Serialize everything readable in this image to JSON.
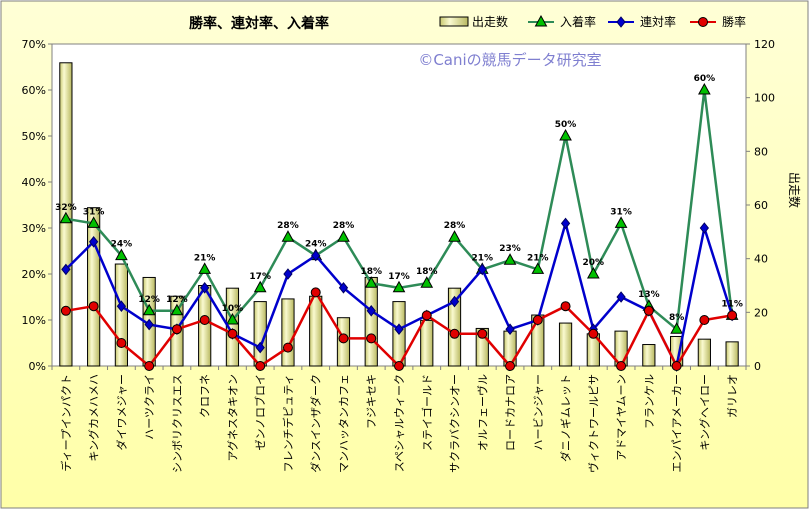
{
  "chart_data": {
    "type": "bar",
    "title": "勝率、連対率、入着率",
    "watermark": "©Caniの競馬データ研究室",
    "y2label": "出走数",
    "ylim": [
      0,
      70
    ],
    "y2lim": [
      0,
      120
    ],
    "y_ticks": [
      "0%",
      "10%",
      "20%",
      "30%",
      "40%",
      "50%",
      "60%",
      "70%"
    ],
    "y2_ticks": [
      "0",
      "20",
      "40",
      "60",
      "80",
      "100",
      "120"
    ],
    "categories": [
      "ディープインパクト",
      "キングカメハメハ",
      "ダイワメジャー",
      "ハーツクライ",
      "シンボリクリスエス",
      "クロフネ",
      "アグネスタキオン",
      "ゼンノロブロイ",
      "フレンチデピュティ",
      "ダンスインザダーク",
      "マンハッタンカフェ",
      "フジキセキ",
      "スペシャルウィーク",
      "ステイゴールド",
      "サクラバクシンオー",
      "オルフェーヴル",
      "ロードカナロア",
      "ハービンジャー",
      "ダニノギムレット",
      "ヴィクトワールピサ",
      "アドマイヤムーン",
      "フランケル",
      "エンパイアメーカー",
      "キングヘイロー",
      "ガリレオ"
    ],
    "series": [
      {
        "name": "出走数",
        "type": "bar",
        "axis": "right",
        "color": "#f0f0a0",
        "values": [
          113,
          59,
          38,
          33,
          26,
          30,
          29,
          24,
          25,
          26,
          18,
          33,
          24,
          17,
          29,
          14,
          13,
          19,
          16,
          12,
          13,
          8,
          11,
          10,
          9
        ]
      },
      {
        "name": "入着率",
        "type": "line",
        "axis": "left",
        "color": "#2e8b57",
        "marker": "triangle",
        "marker_color": "#00c000",
        "values": [
          32,
          31,
          24,
          12,
          12,
          21,
          10,
          17,
          28,
          24,
          28,
          18,
          17,
          18,
          28,
          21,
          23,
          21,
          50,
          20,
          31,
          13,
          8,
          60,
          11
        ]
      },
      {
        "name": "連対率",
        "type": "line",
        "axis": "left",
        "color": "#0000cc",
        "marker": "diamond",
        "marker_color": "#0000cc",
        "values": [
          21,
          27,
          13,
          9,
          8,
          17,
          7,
          4,
          20,
          24,
          17,
          12,
          8,
          11,
          14,
          21,
          8,
          10,
          31,
          8,
          15,
          12,
          0,
          30,
          11
        ]
      },
      {
        "name": "勝率",
        "type": "line",
        "axis": "left",
        "color": "#e00000",
        "marker": "circle",
        "marker_color": "#e00000",
        "values": [
          12,
          13,
          5,
          0,
          8,
          10,
          7,
          0,
          4,
          16,
          6,
          6,
          0,
          11,
          7,
          7,
          0,
          10,
          13,
          7,
          0,
          12,
          0,
          10,
          11
        ]
      }
    ],
    "data_labels": [
      "32%",
      "31%",
      "24%",
      "12%",
      "12%",
      "21%",
      "10%",
      "17%",
      "28%",
      "24%",
      "28%",
      "18%",
      "17%",
      "18%",
      "28%",
      "21%",
      "23%",
      "21%",
      "50%",
      "20%",
      "31%",
      "13%",
      "8%",
      "60%",
      "11%"
    ],
    "grid": false,
    "legend_position": "top-right"
  }
}
